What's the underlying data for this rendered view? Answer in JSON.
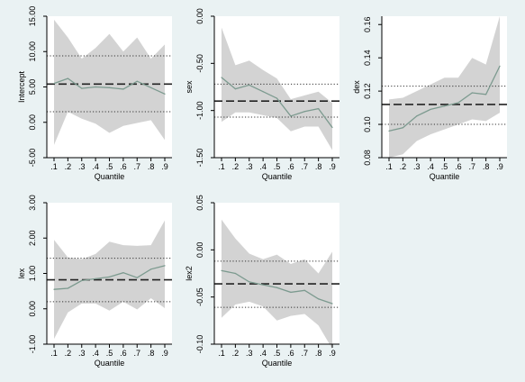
{
  "chart_data": [
    {
      "type": "line",
      "ylabel": "Intercept",
      "xlabel": "Quantile",
      "x": [
        0.1,
        0.2,
        0.3,
        0.4,
        0.5,
        0.6,
        0.7,
        0.8,
        0.9
      ],
      "xticks": [
        ".1",
        ".2",
        ".3",
        ".4",
        ".5",
        ".6",
        ".7",
        ".8",
        ".9"
      ],
      "ylim": [
        -5,
        15
      ],
      "yticks": [
        -5,
        0,
        5,
        10,
        15
      ],
      "ytick_labels": [
        "-5.00",
        "0.00",
        "5.00",
        "10.00",
        "15.00"
      ],
      "estimate": [
        5.5,
        6.2,
        4.8,
        5.0,
        4.9,
        4.7,
        5.8,
        4.9,
        4.0
      ],
      "ci_lower": [
        -3.2,
        1.5,
        0.5,
        -0.2,
        -1.5,
        -0.5,
        -0.1,
        0.3,
        -2.5
      ],
      "ci_upper": [
        14.5,
        12.0,
        9.0,
        10.5,
        12.5,
        10.0,
        12.0,
        9.0,
        11.0
      ],
      "ols": 5.4,
      "ols_ci": [
        1.5,
        9.4
      ]
    },
    {
      "type": "line",
      "ylabel": "sex",
      "xlabel": "Quantile",
      "x": [
        0.1,
        0.2,
        0.3,
        0.4,
        0.5,
        0.6,
        0.7,
        0.8,
        0.9
      ],
      "xticks": [
        ".1",
        ".2",
        ".3",
        ".4",
        ".5",
        ".6",
        ".7",
        ".8",
        ".9"
      ],
      "ylim": [
        -1.5,
        0
      ],
      "yticks": [
        -1.5,
        -1.0,
        -0.5,
        0
      ],
      "ytick_labels": [
        "-1.50",
        "-1.00",
        "-0.50",
        "0.00"
      ],
      "estimate": [
        -0.65,
        -0.77,
        -0.73,
        -0.8,
        -0.87,
        -1.06,
        -1.01,
        -0.98,
        -1.18
      ],
      "ci_lower": [
        -1.12,
        -1.02,
        -1.02,
        -1.05,
        -1.08,
        -1.22,
        -1.17,
        -1.17,
        -1.42
      ],
      "ci_upper": [
        -0.12,
        -0.52,
        -0.47,
        -0.57,
        -0.66,
        -0.88,
        -0.84,
        -0.8,
        -0.92
      ],
      "ols": -0.9,
      "ols_ci": [
        -1.07,
        -0.72
      ]
    },
    {
      "type": "line",
      "ylabel": "dex",
      "xlabel": "Quantile",
      "x": [
        0.1,
        0.2,
        0.3,
        0.4,
        0.5,
        0.6,
        0.7,
        0.8,
        0.9
      ],
      "xticks": [
        ".1",
        ".2",
        ".3",
        ".4",
        ".5",
        ".6",
        ".7",
        ".8",
        ".9"
      ],
      "ylim": [
        0.08,
        0.165
      ],
      "yticks": [
        0.08,
        0.1,
        0.12,
        0.14,
        0.16
      ],
      "ytick_labels": [
        "0.08",
        "0.10",
        "0.12",
        "0.14",
        "0.16"
      ],
      "estimate": [
        0.096,
        0.098,
        0.105,
        0.109,
        0.111,
        0.113,
        0.119,
        0.118,
        0.135
      ],
      "ci_lower": [
        0.08,
        0.082,
        0.09,
        0.094,
        0.097,
        0.1,
        0.103,
        0.102,
        0.107
      ],
      "ci_upper": [
        0.115,
        0.116,
        0.12,
        0.124,
        0.128,
        0.128,
        0.14,
        0.136,
        0.165
      ],
      "ols": 0.112,
      "ols_ci": [
        0.1,
        0.123
      ]
    },
    {
      "type": "line",
      "ylabel": "lex",
      "xlabel": "Quantile",
      "x": [
        0.1,
        0.2,
        0.3,
        0.4,
        0.5,
        0.6,
        0.7,
        0.8,
        0.9
      ],
      "xticks": [
        ".1",
        ".2",
        ".3",
        ".4",
        ".5",
        ".6",
        ".7",
        ".8",
        ".9"
      ],
      "ylim": [
        -1,
        3
      ],
      "yticks": [
        -1,
        0,
        1,
        2,
        3
      ],
      "ytick_labels": [
        "-1.00",
        "0.00",
        "1.00",
        "2.00",
        "3.00"
      ],
      "estimate": [
        0.55,
        0.58,
        0.8,
        0.85,
        0.9,
        1.02,
        0.88,
        1.12,
        1.22
      ],
      "ci_lower": [
        -0.85,
        -0.1,
        0.15,
        0.15,
        -0.05,
        0.2,
        -0.02,
        0.3,
        0.02
      ],
      "ci_upper": [
        1.95,
        1.45,
        1.4,
        1.55,
        1.9,
        1.8,
        1.78,
        1.8,
        2.5
      ],
      "ols": 0.82,
      "ols_ci": [
        0.2,
        1.43
      ]
    },
    {
      "type": "line",
      "ylabel": "lex2",
      "xlabel": "Quantile",
      "x": [
        0.1,
        0.2,
        0.3,
        0.4,
        0.5,
        0.6,
        0.7,
        0.8,
        0.9
      ],
      "xticks": [
        ".1",
        ".2",
        ".3",
        ".4",
        ".5",
        ".6",
        ".7",
        ".8",
        ".9"
      ],
      "ylim": [
        -0.1,
        0.05
      ],
      "yticks": [
        -0.1,
        -0.05,
        0,
        0.05
      ],
      "ytick_labels": [
        "-0.10",
        "-0.05",
        "0.00",
        "0.05"
      ],
      "estimate": [
        -0.022,
        -0.025,
        -0.034,
        -0.037,
        -0.04,
        -0.045,
        -0.043,
        -0.052,
        -0.057
      ],
      "ci_lower": [
        -0.072,
        -0.058,
        -0.055,
        -0.06,
        -0.075,
        -0.07,
        -0.068,
        -0.08,
        -0.105
      ],
      "ci_upper": [
        0.032,
        0.012,
        -0.004,
        -0.01,
        -0.005,
        -0.015,
        -0.01,
        -0.025,
        -0.002
      ],
      "ols": -0.036,
      "ols_ci": [
        -0.012,
        -0.061
      ]
    }
  ]
}
